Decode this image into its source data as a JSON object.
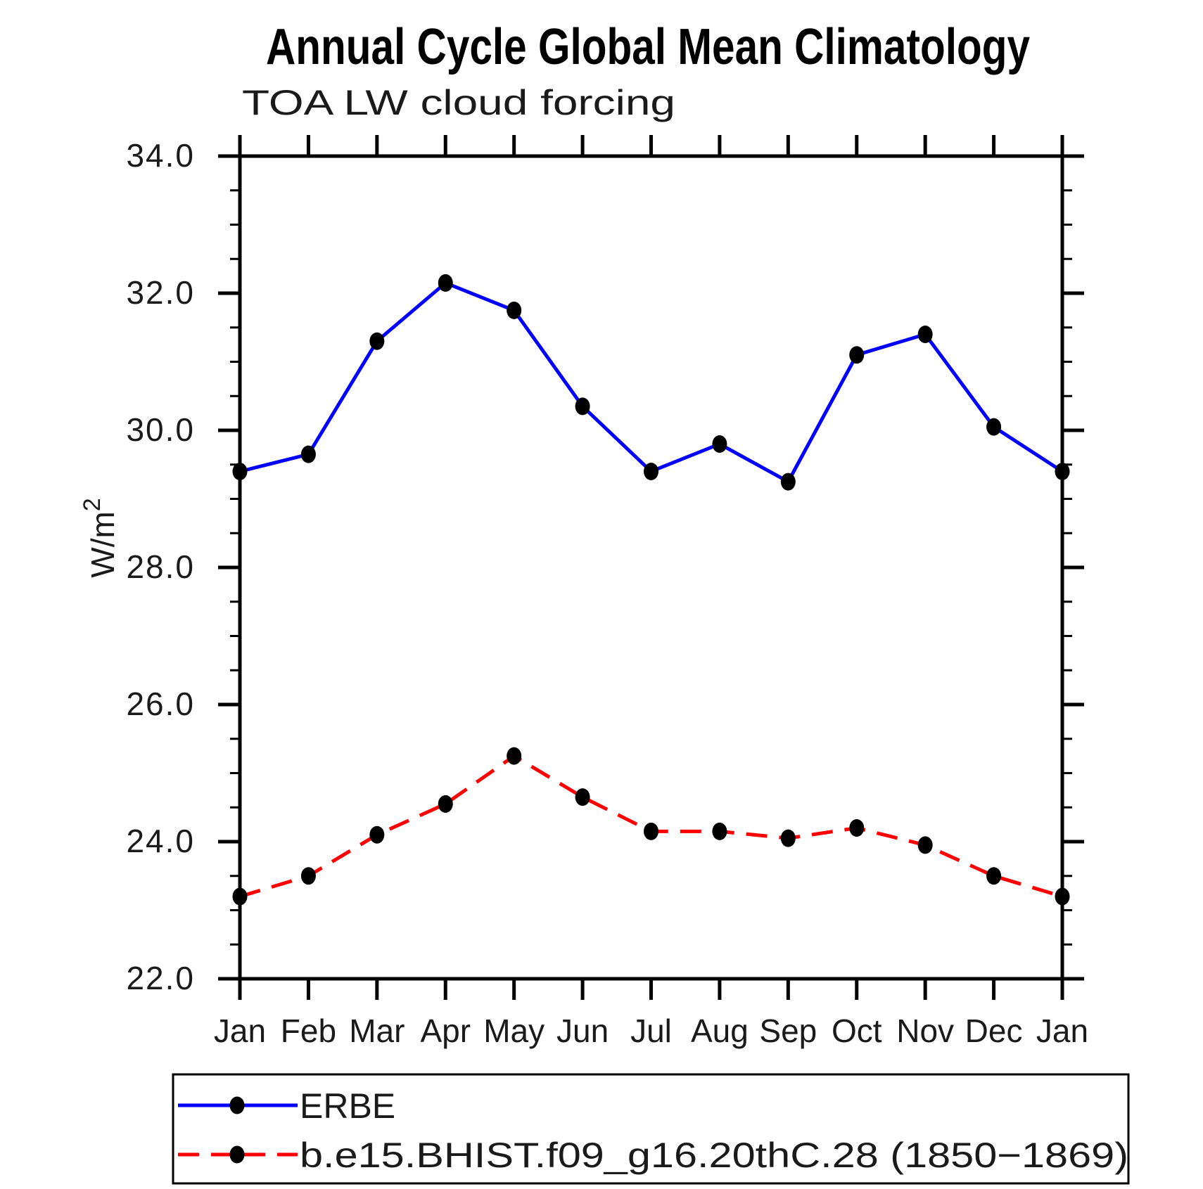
{
  "title": "Annual Cycle Global Mean Climatology",
  "subtitle": "TOA LW cloud forcing",
  "y_axis": {
    "label": "W/m²",
    "label_base": "W/m",
    "label_exponent": "2",
    "tick_labels": [
      "34.0",
      "32.0",
      "30.0",
      "28.0",
      "26.0",
      "24.0",
      "22.0"
    ]
  },
  "x_axis": {
    "tick_labels": [
      "Jan",
      "Feb",
      "Mar",
      "Apr",
      "May",
      "Jun",
      "Jul",
      "Aug",
      "Sep",
      "Oct",
      "Nov",
      "Dec",
      "Jan"
    ]
  },
  "colors": {
    "erbe_line": "#0000ff",
    "model_line": "#ff0000",
    "marker": "#000000",
    "axis": "#000000",
    "background": "#ffffff"
  },
  "chart_data": {
    "type": "line",
    "title": "Annual Cycle Global Mean Climatology",
    "subtitle": "TOA LW cloud forcing",
    "xlabel": "",
    "ylabel": "W/m²",
    "categories": [
      "Jan",
      "Feb",
      "Mar",
      "Apr",
      "May",
      "Jun",
      "Jul",
      "Aug",
      "Sep",
      "Oct",
      "Nov",
      "Dec",
      "Jan"
    ],
    "ylim": [
      22.0,
      34.0
    ],
    "ytick_values": [
      34.0,
      32.0,
      30.0,
      28.0,
      26.0,
      24.0,
      22.0
    ],
    "ytick_labels": [
      "34.0",
      "32.0",
      "30.0",
      "28.0",
      "26.0",
      "24.0",
      "22.0"
    ],
    "ytick_major_step": 2.0,
    "ytick_minor_step": 0.5,
    "grid": false,
    "legend_position": "bottom-left-boxed",
    "series": [
      {
        "name": "ERBE",
        "line_color": "#0000ff",
        "line_style": "solid",
        "marker": "filled-circle",
        "marker_color": "#000000",
        "values": [
          29.4,
          29.65,
          31.3,
          32.15,
          31.75,
          30.35,
          29.4,
          29.8,
          29.25,
          31.1,
          31.4,
          30.05,
          29.4
        ]
      },
      {
        "name": "b.e15.BHIST.f09_g16.20thC.28 (1850−1869)",
        "line_color": "#ff0000",
        "line_style": "dashed",
        "marker": "filled-circle",
        "marker_color": "#000000",
        "values": [
          23.2,
          23.5,
          24.1,
          24.55,
          25.25,
          24.65,
          24.15,
          24.15,
          24.05,
          24.2,
          23.95,
          23.5,
          23.2
        ]
      }
    ]
  }
}
